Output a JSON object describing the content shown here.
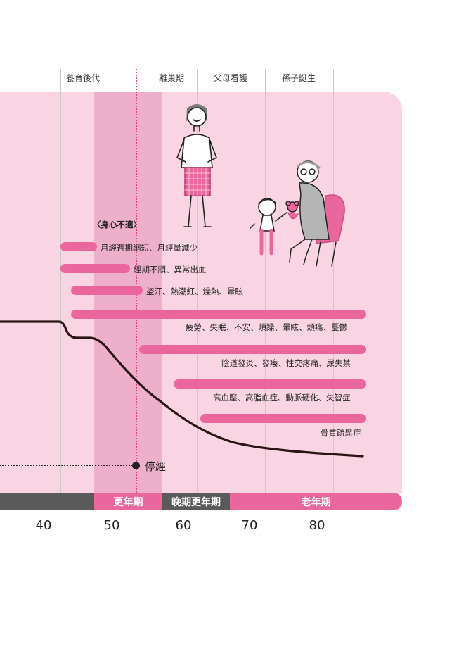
{
  "life_events": [
    "養育後代",
    "離巢期",
    "父母看護",
    "孫子誕生"
  ],
  "symptoms_title": "〈身心不適〉",
  "symptoms": [
    "月經週期縮短、月經量減少",
    "經期不順、異常出血",
    "盜汗、熱潮紅、燥熱、暈眩",
    "疲勞、失眠、不安、煩躁、暈眩、頭痛、憂鬱",
    "陰道發炎、發癢、性交疼痛、尿失禁",
    "高血壓、高脂血症、動脈硬化、失智症",
    "骨質疏鬆症"
  ],
  "menopause_label": "停經",
  "stages": [
    "更年期",
    "晚期更年期",
    "老年期"
  ],
  "ages": [
    "40",
    "50",
    "60",
    "70",
    "80"
  ],
  "colors": {
    "panel": "#f9d5e4",
    "band": "#eeafcb",
    "bar": "#ea679e",
    "stage_dark": "#5a5a5a",
    "stage_pink": "#ea679e",
    "curve": "#2b1414"
  },
  "illustrations": [
    "woman-standing-illustration",
    "grandmother-with-child-illustration"
  ]
}
